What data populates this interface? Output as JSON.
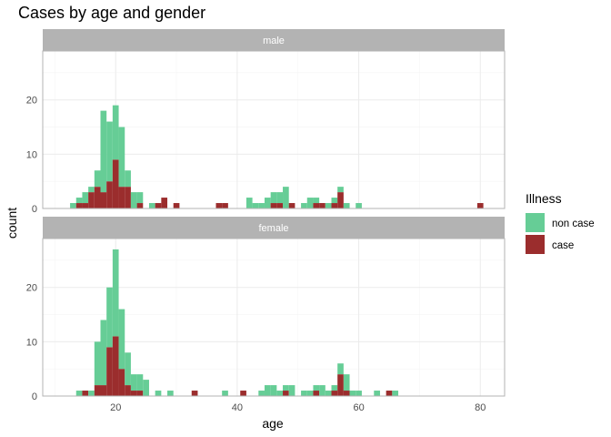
{
  "chart_data": {
    "type": "bar",
    "subtype": "stacked-histogram-faceted",
    "title": "Cases by age and gender",
    "xlabel": "age",
    "ylabel": "count",
    "xlim": [
      8,
      84
    ],
    "ylim": [
      0,
      29
    ],
    "x_ticks": [
      20,
      40,
      60,
      80
    ],
    "y_ticks": [
      0,
      10,
      20
    ],
    "bin_width": 1,
    "grid": true,
    "legend_position": "right",
    "legend": {
      "title": "Illness",
      "items": [
        {
          "label": "non case",
          "color": "#66cd96"
        },
        {
          "label": "case",
          "color": "#9b2d2d"
        }
      ]
    },
    "panels": [
      {
        "label": "male",
        "bins": [
          {
            "x": 13,
            "case": 0,
            "non_case": 1
          },
          {
            "x": 14,
            "case": 1,
            "non_case": 1
          },
          {
            "x": 15,
            "case": 1,
            "non_case": 2
          },
          {
            "x": 16,
            "case": 3,
            "non_case": 1
          },
          {
            "x": 17,
            "case": 4,
            "non_case": 3
          },
          {
            "x": 18,
            "case": 3,
            "non_case": 15
          },
          {
            "x": 19,
            "case": 5,
            "non_case": 11
          },
          {
            "x": 20,
            "case": 9,
            "non_case": 10
          },
          {
            "x": 21,
            "case": 4,
            "non_case": 11
          },
          {
            "x": 22,
            "case": 4,
            "non_case": 3
          },
          {
            "x": 23,
            "case": 0,
            "non_case": 3
          },
          {
            "x": 24,
            "case": 1,
            "non_case": 2
          },
          {
            "x": 26,
            "case": 0,
            "non_case": 1
          },
          {
            "x": 27,
            "case": 1,
            "non_case": 0
          },
          {
            "x": 28,
            "case": 2,
            "non_case": 0
          },
          {
            "x": 30,
            "case": 1,
            "non_case": 0
          },
          {
            "x": 37,
            "case": 1,
            "non_case": 0
          },
          {
            "x": 38,
            "case": 1,
            "non_case": 0
          },
          {
            "x": 42,
            "case": 0,
            "non_case": 2
          },
          {
            "x": 43,
            "case": 0,
            "non_case": 1
          },
          {
            "x": 44,
            "case": 0,
            "non_case": 1
          },
          {
            "x": 45,
            "case": 0,
            "non_case": 2
          },
          {
            "x": 46,
            "case": 1,
            "non_case": 2
          },
          {
            "x": 47,
            "case": 1,
            "non_case": 2
          },
          {
            "x": 48,
            "case": 0,
            "non_case": 4
          },
          {
            "x": 49,
            "case": 1,
            "non_case": 0
          },
          {
            "x": 51,
            "case": 0,
            "non_case": 1
          },
          {
            "x": 52,
            "case": 0,
            "non_case": 2
          },
          {
            "x": 53,
            "case": 1,
            "non_case": 1
          },
          {
            "x": 54,
            "case": 1,
            "non_case": 0
          },
          {
            "x": 55,
            "case": 0,
            "non_case": 1
          },
          {
            "x": 56,
            "case": 1,
            "non_case": 1
          },
          {
            "x": 57,
            "case": 3,
            "non_case": 1
          },
          {
            "x": 58,
            "case": 0,
            "non_case": 1
          },
          {
            "x": 60,
            "case": 0,
            "non_case": 1
          },
          {
            "x": 80,
            "case": 1,
            "non_case": 0
          }
        ]
      },
      {
        "label": "female",
        "bins": [
          {
            "x": 14,
            "case": 0,
            "non_case": 1
          },
          {
            "x": 15,
            "case": 1,
            "non_case": 0
          },
          {
            "x": 16,
            "case": 0,
            "non_case": 1
          },
          {
            "x": 17,
            "case": 2,
            "non_case": 8
          },
          {
            "x": 18,
            "case": 2,
            "non_case": 12
          },
          {
            "x": 19,
            "case": 9,
            "non_case": 11
          },
          {
            "x": 20,
            "case": 11,
            "non_case": 16
          },
          {
            "x": 21,
            "case": 5,
            "non_case": 11
          },
          {
            "x": 22,
            "case": 2,
            "non_case": 6
          },
          {
            "x": 23,
            "case": 1,
            "non_case": 3
          },
          {
            "x": 24,
            "case": 1,
            "non_case": 3
          },
          {
            "x": 25,
            "case": 0,
            "non_case": 3
          },
          {
            "x": 27,
            "case": 0,
            "non_case": 1
          },
          {
            "x": 29,
            "case": 0,
            "non_case": 1
          },
          {
            "x": 33,
            "case": 1,
            "non_case": 0
          },
          {
            "x": 38,
            "case": 0,
            "non_case": 1
          },
          {
            "x": 41,
            "case": 1,
            "non_case": 0
          },
          {
            "x": 44,
            "case": 0,
            "non_case": 1
          },
          {
            "x": 45,
            "case": 0,
            "non_case": 2
          },
          {
            "x": 46,
            "case": 0,
            "non_case": 2
          },
          {
            "x": 47,
            "case": 0,
            "non_case": 1
          },
          {
            "x": 48,
            "case": 1,
            "non_case": 1
          },
          {
            "x": 49,
            "case": 0,
            "non_case": 2
          },
          {
            "x": 51,
            "case": 0,
            "non_case": 1
          },
          {
            "x": 52,
            "case": 0,
            "non_case": 1
          },
          {
            "x": 53,
            "case": 1,
            "non_case": 1
          },
          {
            "x": 54,
            "case": 0,
            "non_case": 2
          },
          {
            "x": 55,
            "case": 0,
            "non_case": 1
          },
          {
            "x": 56,
            "case": 1,
            "non_case": 1
          },
          {
            "x": 57,
            "case": 4,
            "non_case": 2
          },
          {
            "x": 58,
            "case": 1,
            "non_case": 3
          },
          {
            "x": 59,
            "case": 0,
            "non_case": 1
          },
          {
            "x": 60,
            "case": 0,
            "non_case": 1
          },
          {
            "x": 63,
            "case": 0,
            "non_case": 1
          },
          {
            "x": 65,
            "case": 1,
            "non_case": 0
          },
          {
            "x": 66,
            "case": 0,
            "non_case": 1
          }
        ]
      }
    ]
  },
  "colors": {
    "non_case": "#66cd96",
    "case": "#9b2d2d",
    "strip_bg": "#b3b3b3",
    "grid_major": "#ebebeb",
    "grid_minor": "#f5f5f5",
    "panel_border": "#b3b3b3"
  }
}
